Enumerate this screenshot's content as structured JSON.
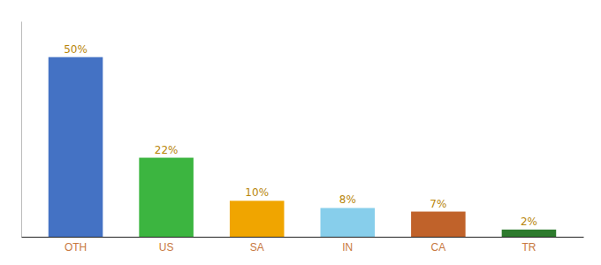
{
  "chart_data": {
    "type": "bar",
    "categories": [
      "OTH",
      "US",
      "SA",
      "IN",
      "CA",
      "TR"
    ],
    "values": [
      50,
      22,
      10,
      8,
      7,
      2
    ],
    "value_labels": [
      "50%",
      "22%",
      "10%",
      "8%",
      "7%",
      "2%"
    ],
    "colors": [
      "#4472c4",
      "#3cb540",
      "#f0a500",
      "#87ceeb",
      "#c0622a",
      "#2d7a2d"
    ],
    "ylim": [
      0,
      60
    ],
    "data_labels": true,
    "tick_labels": "x"
  }
}
